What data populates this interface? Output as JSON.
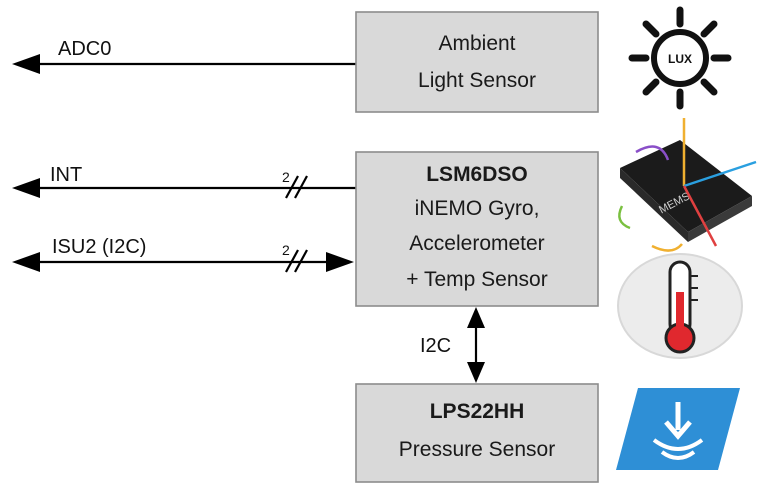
{
  "signals": {
    "adc0": "ADC0",
    "int": "INT",
    "isu2": "ISU2 (I2C)",
    "bus_width_int": "2",
    "bus_width_isu2": "2",
    "i2c_link": "I2C"
  },
  "blocks": {
    "ambient": {
      "line1": "Ambient",
      "line2": "Light Sensor"
    },
    "imu": {
      "title": "LSM6DSO",
      "line2": "iNEMO Gyro,",
      "line3": "Accelerometer",
      "line4": "+ Temp Sensor"
    },
    "pressure": {
      "title": "LPS22HH",
      "line2": "Pressure Sensor"
    }
  },
  "icons": {
    "lux": {
      "name": "sun-lux-icon",
      "text": "LUX"
    },
    "mems": {
      "name": "mems-chip-icon",
      "text": "MEMS"
    },
    "thermometer": {
      "name": "thermometer-icon"
    },
    "pressure": {
      "name": "pressure-icon"
    }
  },
  "colors": {
    "block_fill": "#d9d9d9",
    "block_stroke": "#8c8c8c",
    "pressure_icon": "#2e8fd6",
    "thermo_red": "#e0282e"
  }
}
